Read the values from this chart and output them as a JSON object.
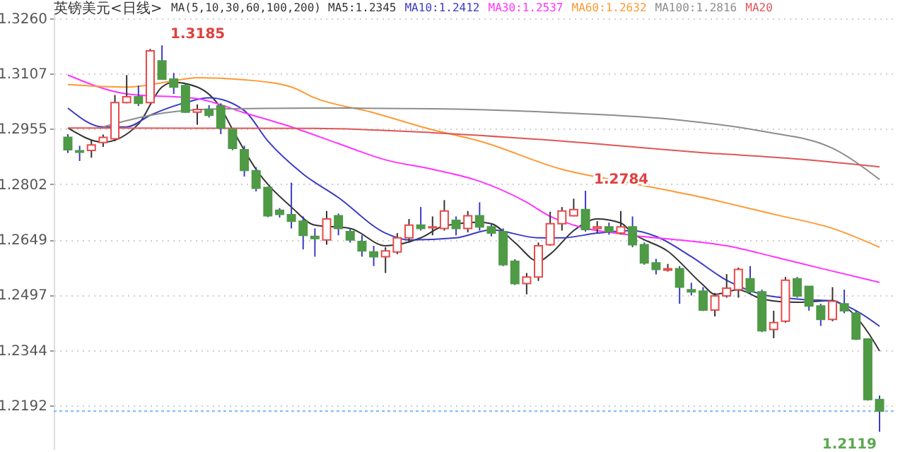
{
  "chart_data": {
    "type": "candlestick",
    "title": "英镑美元<日线>",
    "subtitle": "MA(5,10,30,60,100,200)",
    "categories": [
      null,
      null,
      null,
      null,
      null,
      null,
      null,
      null,
      null,
      null,
      null,
      null,
      null,
      null,
      null,
      null,
      null,
      null,
      null,
      null,
      null,
      null,
      null,
      null,
      null,
      null,
      null,
      null,
      null,
      null,
      null,
      null,
      null,
      null,
      null,
      null,
      null,
      null,
      null,
      null,
      null,
      null,
      null,
      null,
      null,
      null,
      null,
      null,
      null,
      null,
      null,
      null,
      null,
      null,
      null,
      null,
      null,
      null,
      null,
      null,
      null,
      null,
      null,
      null,
      null,
      null,
      null,
      null,
      null,
      null
    ],
    "ohlc": [
      [
        1.2931,
        1.294,
        1.2888,
        1.2897
      ],
      [
        1.2894,
        1.2908,
        1.2866,
        1.289
      ],
      [
        1.2895,
        1.2923,
        1.2875,
        1.291
      ],
      [
        1.2917,
        1.2939,
        1.2905,
        1.2931
      ],
      [
        1.2927,
        1.3048,
        1.2921,
        1.3027
      ],
      [
        1.3027,
        1.3103,
        1.3025,
        1.3043
      ],
      [
        1.3043,
        1.3074,
        1.3018,
        1.3025
      ],
      [
        1.3027,
        1.3175,
        1.3025,
        1.317
      ],
      [
        1.3142,
        1.3185,
        1.3092,
        1.3092
      ],
      [
        1.3092,
        1.3109,
        1.3051,
        1.307
      ],
      [
        1.3074,
        1.308,
        1.2999,
        1.3001
      ],
      [
        1.3001,
        1.3022,
        1.2966,
        1.3008
      ],
      [
        1.3008,
        1.302,
        1.2986,
        1.2992
      ],
      [
        1.3018,
        1.3025,
        1.294,
        1.2957
      ],
      [
        1.2953,
        1.2953,
        1.2896,
        1.2901
      ],
      [
        1.2897,
        1.2908,
        1.2823,
        1.284
      ],
      [
        1.2839,
        1.2849,
        1.2782,
        1.2791
      ],
      [
        1.2793,
        1.2795,
        1.2711,
        1.2715
      ],
      [
        1.273,
        1.2736,
        1.271,
        1.2719
      ],
      [
        1.2718,
        1.2806,
        1.268,
        1.27
      ],
      [
        1.27,
        1.2713,
        1.2622,
        1.2661
      ],
      [
        1.2658,
        1.268,
        1.2602,
        1.2652
      ],
      [
        1.2648,
        1.2728,
        1.2635,
        1.2706
      ],
      [
        1.2715,
        1.2721,
        1.2661,
        1.268
      ],
      [
        1.2671,
        1.2679,
        1.2641,
        1.2648
      ],
      [
        1.2644,
        1.2661,
        1.2602,
        1.2618
      ],
      [
        1.2615,
        1.2632,
        1.2576,
        1.2602
      ],
      [
        1.2602,
        1.2628,
        1.2557,
        1.2618
      ],
      [
        1.2615,
        1.2667,
        1.2609,
        1.2654
      ],
      [
        1.2654,
        1.2706,
        1.2641,
        1.2689
      ],
      [
        1.2689,
        1.2739,
        1.2674,
        1.268
      ],
      [
        1.2682,
        1.2713,
        1.2661,
        1.2684
      ],
      [
        1.268,
        1.2758,
        1.2674,
        1.2728
      ],
      [
        1.2702,
        1.2713,
        1.2661,
        1.268
      ],
      [
        1.268,
        1.2728,
        1.2669,
        1.2715
      ],
      [
        1.2715,
        1.2752,
        1.2674,
        1.2684
      ],
      [
        1.2684,
        1.2693,
        1.2658,
        1.2667
      ],
      [
        1.2671,
        1.268,
        1.2576,
        1.258
      ],
      [
        1.2589,
        1.2595,
        1.2524,
        1.2528
      ],
      [
        1.2528,
        1.2557,
        1.2498,
        1.2546
      ],
      [
        1.2546,
        1.2641,
        1.2535,
        1.2632
      ],
      [
        1.2635,
        1.2726,
        1.2632,
        1.2693
      ],
      [
        1.2693,
        1.2739,
        1.2674,
        1.2728
      ],
      [
        1.2715,
        1.2762,
        1.2713,
        1.2732
      ],
      [
        1.2732,
        1.2784,
        1.2671,
        1.2677
      ],
      [
        1.268,
        1.27,
        1.2667,
        1.2684
      ],
      [
        1.2684,
        1.2696,
        1.2663,
        1.2671
      ],
      [
        1.2667,
        1.2728,
        1.2663,
        1.2684
      ],
      [
        1.2684,
        1.2713,
        1.2628,
        1.2635
      ],
      [
        1.2635,
        1.2641,
        1.258,
        1.2585
      ],
      [
        1.2585,
        1.2596,
        1.2553,
        1.2567
      ],
      [
        1.2565,
        1.2582,
        1.2561,
        1.2569
      ],
      [
        1.2569,
        1.2576,
        1.2472,
        1.2518
      ],
      [
        1.2511,
        1.253,
        1.2495,
        1.2505
      ],
      [
        1.2507,
        1.2518,
        1.2452,
        1.2455
      ],
      [
        1.2455,
        1.2502,
        1.2437,
        1.2494
      ],
      [
        1.2494,
        1.2554,
        1.2489,
        1.2515
      ],
      [
        1.2511,
        1.2572,
        1.2489,
        1.2567
      ],
      [
        1.2541,
        1.2576,
        1.2498,
        1.2505
      ],
      [
        1.2505,
        1.2511,
        1.2394,
        1.2398
      ],
      [
        1.2401,
        1.2453,
        1.2377,
        1.242
      ],
      [
        1.2424,
        1.2546,
        1.242,
        1.2537
      ],
      [
        1.2541,
        1.2546,
        1.2489,
        1.2494
      ],
      [
        1.252,
        1.252,
        1.2453,
        1.2466
      ],
      [
        1.2466,
        1.2472,
        1.2411,
        1.2429
      ],
      [
        1.2429,
        1.2518,
        1.2424,
        1.2479
      ],
      [
        1.2472,
        1.2511,
        1.2446,
        1.2453
      ],
      [
        1.2446,
        1.2453,
        1.2372,
        1.2375
      ],
      [
        1.2375,
        1.2375,
        1.2205,
        1.2208
      ],
      [
        1.2208,
        1.2219,
        1.2119,
        1.2176
      ]
    ],
    "series": [
      {
        "name": "MA5:1.2345",
        "type": "line",
        "color": "#333333",
        "values": [
          1.2957,
          null,
          null,
          1.2918,
          null,
          null,
          1.2968,
          null,
          1.307,
          1.3083,
          null,
          1.307,
          null,
          1.3012,
          1.2953,
          null,
          1.2843,
          null,
          null,
          1.2739,
          null,
          1.2689,
          null,
          null,
          1.268,
          null,
          null,
          1.2632,
          null,
          null,
          1.2654,
          null,
          1.2687,
          null,
          null,
          1.2697,
          1.2693,
          null,
          1.2641,
          null,
          1.2589,
          1.2609,
          null,
          1.2674,
          null,
          1.2706,
          null,
          1.2695,
          1.2667,
          null,
          null,
          1.2617,
          null,
          null,
          1.2524,
          1.2498,
          null,
          1.2511,
          null,
          1.2485,
          null,
          null,
          1.2476,
          null,
          null,
          1.2481,
          1.2466,
          null,
          1.2394,
          1.2342
        ]
      },
      {
        "name": "MA10:1.2412",
        "type": "line",
        "color": "#3b3bc4",
        "values": [
          1.3012,
          null,
          null,
          1.296,
          null,
          1.296,
          null,
          1.2992,
          null,
          null,
          1.3027,
          null,
          1.304,
          null,
          null,
          1.3005,
          null,
          1.2921,
          null,
          null,
          1.283,
          null,
          null,
          1.2765,
          null,
          null,
          null,
          1.2667,
          null,
          1.2648,
          null,
          null,
          null,
          1.2654,
          null,
          null,
          1.2676,
          null,
          null,
          null,
          1.2654,
          null,
          1.2654,
          null,
          null,
          1.2667,
          null,
          null,
          1.2674,
          null,
          1.2658,
          null,
          null,
          1.2602,
          null,
          null,
          1.2537,
          null,
          null,
          1.2498,
          null,
          null,
          1.2485,
          null,
          null,
          1.2479,
          null,
          1.2453,
          null,
          1.241
        ]
      },
      {
        "name": "MA30:1.2537",
        "type": "line",
        "color": "#ff33ff",
        "values": [
          1.3103,
          null,
          null,
          null,
          null,
          1.3051,
          null,
          null,
          null,
          null,
          null,
          1.3038,
          null,
          null,
          null,
          1.2999,
          null,
          null,
          null,
          1.296,
          null,
          null,
          null,
          1.2914,
          null,
          null,
          null,
          1.2869,
          null,
          null,
          null,
          1.2843,
          null,
          null,
          null,
          1.281,
          null,
          null,
          null,
          1.2752,
          null,
          1.2713,
          null,
          1.2689,
          null,
          null,
          null,
          null,
          1.2661,
          null,
          null,
          null,
          1.2648,
          null,
          null,
          null,
          1.2632,
          null,
          null,
          null,
          1.2602,
          null,
          null,
          null,
          1.257,
          null,
          null,
          null,
          null,
          1.2531
        ]
      },
      {
        "name": "MA60:1.2632",
        "type": "line",
        "color": "#ff9933",
        "values": [
          1.3077,
          null,
          null,
          null,
          null,
          1.307,
          null,
          null,
          null,
          1.3087,
          null,
          1.3096,
          null,
          null,
          null,
          1.309,
          null,
          null,
          null,
          1.307,
          null,
          1.304,
          null,
          null,
          null,
          null,
          1.2999,
          null,
          null,
          null,
          null,
          1.2952,
          null,
          null,
          null,
          1.2921,
          null,
          null,
          null,
          null,
          null,
          null,
          1.2843,
          null,
          null,
          null,
          null,
          null,
          1.2804,
          null,
          null,
          null,
          null,
          null,
          1.2765,
          null,
          null,
          null,
          null,
          null,
          1.2719,
          null,
          null,
          null,
          null,
          1.268,
          null,
          null,
          null,
          1.2628
        ]
      },
      {
        "name": "MA100:1.2816",
        "type": "line",
        "color": "#8c8c8c",
        "values": [
          null,
          null,
          null,
          1.296,
          null,
          null,
          null,
          1.2992,
          null,
          null,
          null,
          null,
          1.3009,
          null,
          null,
          null,
          null,
          null,
          null,
          null,
          null,
          1.3012,
          null,
          null,
          null,
          null,
          null,
          null,
          null,
          null,
          null,
          1.301,
          null,
          null,
          null,
          null,
          null,
          null,
          null,
          null,
          null,
          null,
          1.2999,
          null,
          null,
          null,
          null,
          null,
          null,
          null,
          null,
          null,
          1.2979,
          null,
          null,
          null,
          null,
          null,
          null,
          1.2948,
          null,
          null,
          null,
          null,
          null,
          1.2901,
          null,
          null,
          null,
          1.2815
        ]
      },
      {
        "name": "MA20",
        "type": "line",
        "color": "#e05555",
        "values": [
          1.2957,
          null,
          null,
          null,
          null,
          null,
          null,
          null,
          null,
          null,
          null,
          null,
          null,
          null,
          null,
          null,
          null,
          null,
          null,
          null,
          null,
          1.2956,
          null,
          null,
          null,
          null,
          null,
          null,
          null,
          null,
          null,
          1.2944,
          null,
          null,
          null,
          null,
          null,
          null,
          null,
          null,
          null,
          null,
          1.2921,
          null,
          null,
          null,
          null,
          null,
          null,
          null,
          null,
          null,
          null,
          null,
          1.2889,
          null,
          null,
          null,
          null,
          null,
          null,
          1.2874,
          null,
          null,
          null,
          null,
          null,
          null,
          null,
          1.285
        ]
      }
    ],
    "ylim": [
      1.2071,
      1.3275
    ],
    "yticks": [
      1.2192,
      1.2344,
      1.2497,
      1.2649,
      1.2802,
      1.2955,
      1.3107,
      {
        "value": 1.326,
        "label": "1.3260"
      }
    ],
    "grid": "y",
    "legend": "top",
    "ref_lines": [
      {
        "axis": "y",
        "value": 1.2176,
        "color": "#7fbfff",
        "line_style": "dotted"
      }
    ],
    "annotations": [
      "1.3185",
      "1.2784",
      "1.2119"
    ]
  }
}
